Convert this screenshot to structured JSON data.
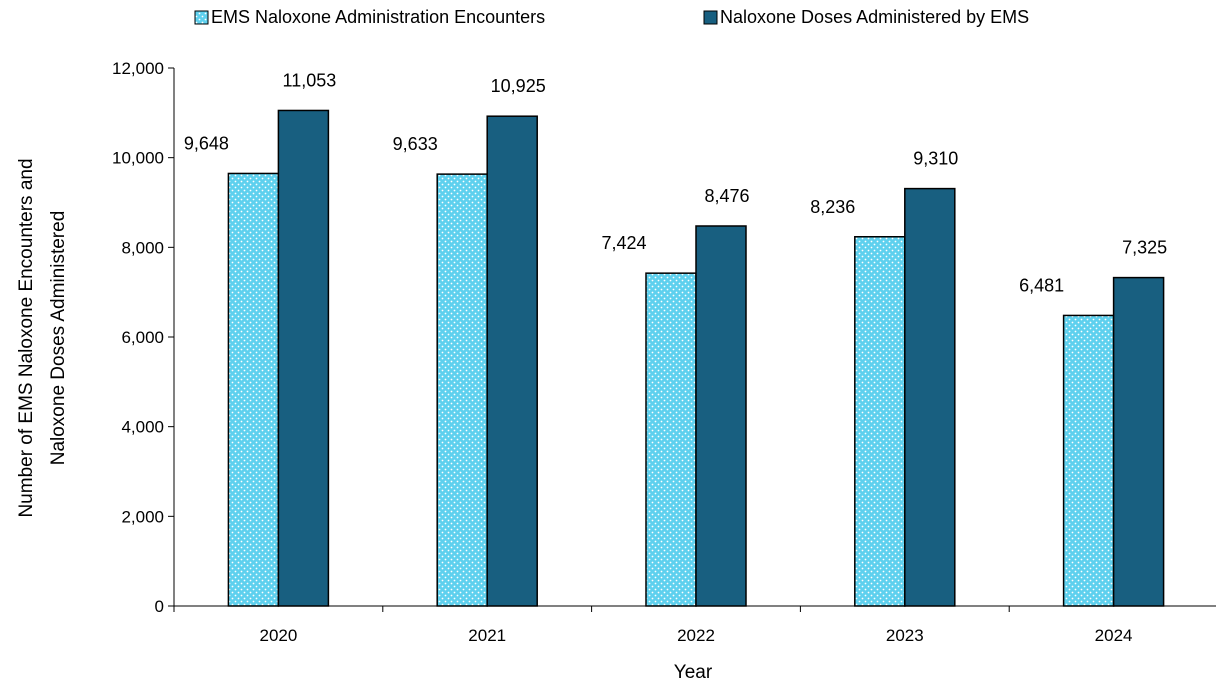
{
  "chart_data": {
    "type": "bar",
    "categories": [
      "2020",
      "2021",
      "2022",
      "2023",
      "2024"
    ],
    "series": [
      {
        "name": "EMS Naloxone Administration Encounters",
        "values": [
          9648,
          9633,
          7424,
          8236,
          6481
        ],
        "value_labels": [
          "9,648",
          "9,633",
          "7,424",
          "8,236",
          "6,481"
        ],
        "color": "#5ED0EE",
        "pattern": "dotted"
      },
      {
        "name": "Naloxone Doses Administered by EMS",
        "values": [
          11053,
          10925,
          8476,
          9310,
          7325
        ],
        "value_labels": [
          "11,053",
          "10,925",
          "8,476",
          "9,310",
          "7,325"
        ],
        "color": "#185F80",
        "pattern": "solid"
      }
    ],
    "xlabel": "Year",
    "ylabel": [
      "Number of EMS Naloxone Encounters and",
      "Naloxone Doses Administered"
    ],
    "ylim": [
      0,
      12000
    ],
    "yticks": [
      0,
      2000,
      4000,
      6000,
      8000,
      10000,
      12000
    ],
    "ytick_labels": [
      "0",
      "2,000",
      "4,000",
      "6,000",
      "8,000",
      "10,000",
      "12,000"
    ],
    "legend_position": "top-center",
    "grid": false
  }
}
